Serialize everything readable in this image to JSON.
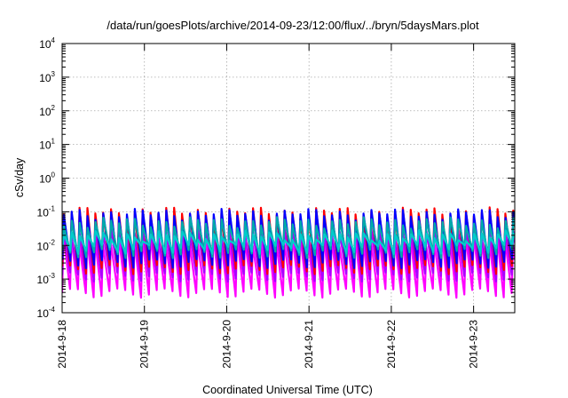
{
  "chart_data": {
    "type": "line",
    "title": "/data/run/goesPlots/archive/2014-09-23/12:00/flux/../bryn/5daysMars.plot",
    "xlabel": "Coordinated Universal Time (UTC)",
    "ylabel": "cSv/day",
    "yscale": "log",
    "ylim": [
      0.0001,
      10000
    ],
    "y_ticks": [
      {
        "base": "10",
        "exp": "-4",
        "value": 0.0001
      },
      {
        "base": "10",
        "exp": "-3",
        "value": 0.001
      },
      {
        "base": "10",
        "exp": "-2",
        "value": 0.01
      },
      {
        "base": "10",
        "exp": "-1",
        "value": 0.1
      },
      {
        "base": "10",
        "exp": "0",
        "value": 1
      },
      {
        "base": "10",
        "exp": "1",
        "value": 10
      },
      {
        "base": "10",
        "exp": "2",
        "value": 100
      },
      {
        "base": "10",
        "exp": "3",
        "value": 1000
      },
      {
        "base": "10",
        "exp": "4",
        "value": 10000
      }
    ],
    "xlim": [
      "2014-09-18 00:00",
      "2014-09-23 12:00"
    ],
    "x_ticks": [
      {
        "label": "2014-9-18",
        "value": "2014-09-18"
      },
      {
        "label": "2014-9-19",
        "value": "2014-09-19"
      },
      {
        "label": "2014-9-20",
        "value": "2014-09-20"
      },
      {
        "label": "2014-9-21",
        "value": "2014-09-21"
      },
      {
        "label": "2014-9-22",
        "value": "2014-09-22"
      },
      {
        "label": "2014-9-23",
        "value": "2014-09-23"
      }
    ],
    "grid": true,
    "sawtooth_period_hours": 2.3,
    "series": [
      {
        "color": "#ff00ff",
        "peak": 0.015,
        "trough": 0.0004
      },
      {
        "color": "#aa00ff",
        "peak": 0.03,
        "trough": 0.0012
      },
      {
        "color": "#ff0000",
        "peak": 0.1,
        "trough": 0.002
      },
      {
        "color": "#0000ff",
        "peak": 0.09,
        "trough": 0.003
      },
      {
        "color": "#00aaaa",
        "peak": 0.05,
        "trough": 0.006
      },
      {
        "color": "#00cccc",
        "peak": 0.02,
        "trough": 0.008
      }
    ]
  }
}
